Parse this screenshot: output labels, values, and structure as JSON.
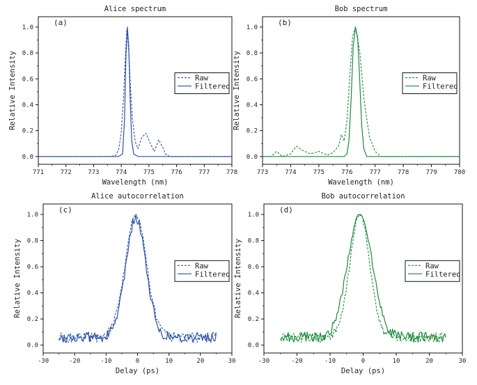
{
  "figure": {
    "panels": [
      "a",
      "b",
      "c",
      "d"
    ]
  },
  "chart_data": [
    {
      "id": "a",
      "type": "line",
      "panel_label": "(a)",
      "title": "Alice spectrum",
      "xlabel": "Wavelength (nm)",
      "ylabel": "Relative Intensity",
      "xlim": [
        771,
        778
      ],
      "ylim": [
        -0.06,
        1.08
      ],
      "xticks": [
        771,
        772,
        773,
        774,
        775,
        776,
        777,
        778
      ],
      "yticks": [
        0.0,
        0.2,
        0.4,
        0.6,
        0.8,
        1.0
      ],
      "ytick_labels": [
        "0.0",
        "0.2",
        "0.4",
        "0.6",
        "0.8",
        "1.0"
      ],
      "color": "#2a52a8",
      "legend_position": "right-middle",
      "series": [
        {
          "name": "Raw",
          "style": "dashed",
          "x": [
            771.0,
            773.6,
            773.8,
            773.9,
            774.0,
            774.08,
            774.15,
            774.2,
            774.24,
            774.28,
            774.33,
            774.4,
            774.5,
            774.6,
            774.75,
            774.9,
            775.05,
            775.2,
            775.35,
            775.5,
            775.6,
            775.75,
            778.0
          ],
          "y": [
            0.0,
            0.0,
            0.01,
            0.05,
            0.18,
            0.45,
            0.78,
            0.98,
            0.9,
            0.78,
            0.55,
            0.3,
            0.12,
            0.06,
            0.15,
            0.18,
            0.1,
            0.04,
            0.13,
            0.07,
            0.02,
            0.0,
            0.0
          ]
        },
        {
          "name": "Filtered",
          "style": "solid",
          "x": [
            771.0,
            773.9,
            774.05,
            774.12,
            774.17,
            774.22,
            774.27,
            774.32,
            774.38,
            774.45,
            774.6,
            778.0
          ],
          "y": [
            0.0,
            0.0,
            0.02,
            0.3,
            0.78,
            1.0,
            0.85,
            0.45,
            0.12,
            0.02,
            0.0,
            0.0
          ]
        }
      ]
    },
    {
      "id": "b",
      "type": "line",
      "panel_label": "(b)",
      "title": "Bob spectrum",
      "xlabel": "Wavelength (nm)",
      "ylabel": "Relative Intensity",
      "xlim": [
        773,
        780
      ],
      "ylim": [
        -0.06,
        1.08
      ],
      "xticks": [
        773,
        774,
        775,
        776,
        777,
        778,
        779,
        780
      ],
      "yticks": [
        0.0,
        0.2,
        0.4,
        0.6,
        0.8,
        1.0
      ],
      "ytick_labels": [
        "0.0",
        "0.2",
        "0.4",
        "0.6",
        "0.8",
        "1.0"
      ],
      "color": "#1a8a3e",
      "legend_position": "right-middle",
      "series": [
        {
          "name": "Raw",
          "style": "dashed",
          "x": [
            773.0,
            773.3,
            773.5,
            773.7,
            774.0,
            774.2,
            774.4,
            774.7,
            775.0,
            775.3,
            775.5,
            775.7,
            775.8,
            775.9,
            776.0,
            776.1,
            776.2,
            776.3,
            776.45,
            776.6,
            776.8,
            777.0,
            777.2,
            780.0
          ],
          "y": [
            0.0,
            0.0,
            0.04,
            0.0,
            0.02,
            0.08,
            0.05,
            0.02,
            0.04,
            0.01,
            0.03,
            0.08,
            0.17,
            0.12,
            0.28,
            0.62,
            0.93,
            1.0,
            0.82,
            0.45,
            0.15,
            0.04,
            0.0,
            0.0
          ]
        },
        {
          "name": "Filtered",
          "style": "solid",
          "x": [
            773.0,
            775.9,
            776.0,
            776.07,
            776.15,
            776.22,
            776.3,
            776.38,
            776.45,
            776.52,
            776.6,
            776.7,
            780.0
          ],
          "y": [
            0.0,
            0.0,
            0.02,
            0.12,
            0.45,
            0.85,
            1.0,
            0.92,
            0.6,
            0.25,
            0.06,
            0.0,
            0.0
          ]
        }
      ]
    },
    {
      "id": "c",
      "type": "line",
      "panel_label": "(c)",
      "title": "Alice autocorrelation",
      "xlabel": "Delay (ps)",
      "ylabel": "Relative Intensity",
      "xlim": [
        -30,
        30
      ],
      "ylim": [
        -0.06,
        1.08
      ],
      "xticks": [
        -30,
        -20,
        -10,
        0,
        10,
        20,
        30
      ],
      "xtick_labels": [
        "-30",
        "-20",
        "-10",
        "0",
        "10",
        "20",
        "30"
      ],
      "yticks": [
        0.0,
        0.2,
        0.4,
        0.6,
        0.8,
        1.0
      ],
      "ytick_labels": [
        "0.0",
        "0.2",
        "0.4",
        "0.6",
        "0.8",
        "1.0"
      ],
      "color": "#2a52a8",
      "legend_position": "right-middle",
      "pulse": {
        "x_min": -25,
        "x_max": 25,
        "center": -0.5,
        "sigma": 3.4,
        "baseline": 0.06,
        "noise": 0.04
      },
      "series": [
        {
          "name": "Raw",
          "style": "dashed"
        },
        {
          "name": "Filtered",
          "style": "solid"
        }
      ]
    },
    {
      "id": "d",
      "type": "line",
      "panel_label": "(d)",
      "title": "Bob autocorrelation",
      "xlabel": "Delay (ps)",
      "ylabel": "Relative Intensity",
      "xlim": [
        -30,
        30
      ],
      "ylim": [
        -0.06,
        1.08
      ],
      "xticks": [
        -30,
        -20,
        -10,
        0,
        10,
        20,
        30
      ],
      "xtick_labels": [
        "-30",
        "-20",
        "-10",
        "0",
        "10",
        "20",
        "30"
      ],
      "yticks": [
        0.0,
        0.2,
        0.4,
        0.6,
        0.8,
        1.0
      ],
      "ytick_labels": [
        "0.0",
        "0.2",
        "0.4",
        "0.6",
        "0.8",
        "1.0"
      ],
      "color": "#1a8a3e",
      "legend_position": "right-middle",
      "pulse": {
        "x_min": -25,
        "x_max": 25,
        "center": -1.0,
        "sigma": 3.0,
        "baseline": 0.06,
        "noise": 0.04
      },
      "series": [
        {
          "name": "Raw",
          "style": "dashed"
        },
        {
          "name": "Filtered",
          "style": "solid"
        }
      ]
    }
  ]
}
